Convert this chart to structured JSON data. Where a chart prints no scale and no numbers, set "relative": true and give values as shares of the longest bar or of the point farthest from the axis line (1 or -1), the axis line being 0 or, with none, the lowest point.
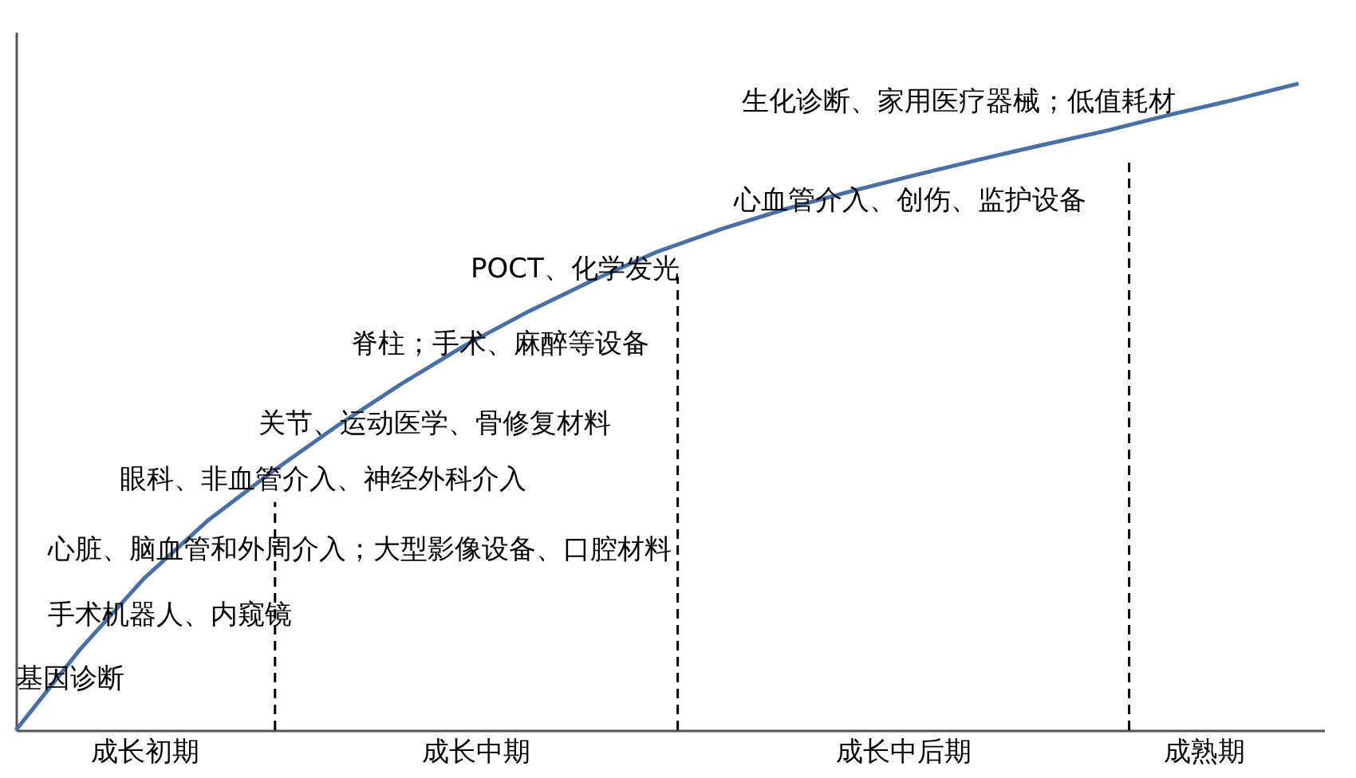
{
  "chart_data": {
    "type": "line",
    "relative": true,
    "tick_labels": false,
    "marker": "none",
    "line_style": "solid",
    "categories": [
      null,
      null,
      null,
      null,
      null,
      null,
      null,
      null,
      null,
      null,
      null,
      null,
      null,
      null,
      null,
      null,
      null,
      null,
      null,
      null,
      null
    ],
    "series": [
      {
        "color": "#4a6fa5",
        "values": [
          0,
          0.125,
          0.235,
          0.325,
          0.4,
          0.47,
          0.535,
          0.595,
          0.648,
          0.696,
          0.74,
          0.775,
          0.806,
          0.833,
          0.858,
          0.882,
          0.905,
          0.927,
          0.952,
          0.975,
          1.0
        ]
      }
    ],
    "annotations": [
      "基因诊断",
      "手术机器人、内窥镜",
      "心脏、脑血管和外周介入；大型影像设备、口腔材料",
      "眼科、非血管介入、神经外科介入",
      "关节、运动医学、骨修复材料",
      "脊柱；手术、麻醉等设备",
      "POCT、化学发光",
      "心血管介入、创伤、监护设备",
      "生化诊断、家用医疗器械；低值耗材",
      "成长初期",
      "成长中期",
      "成长中后期",
      "成熟期"
    ]
  }
}
